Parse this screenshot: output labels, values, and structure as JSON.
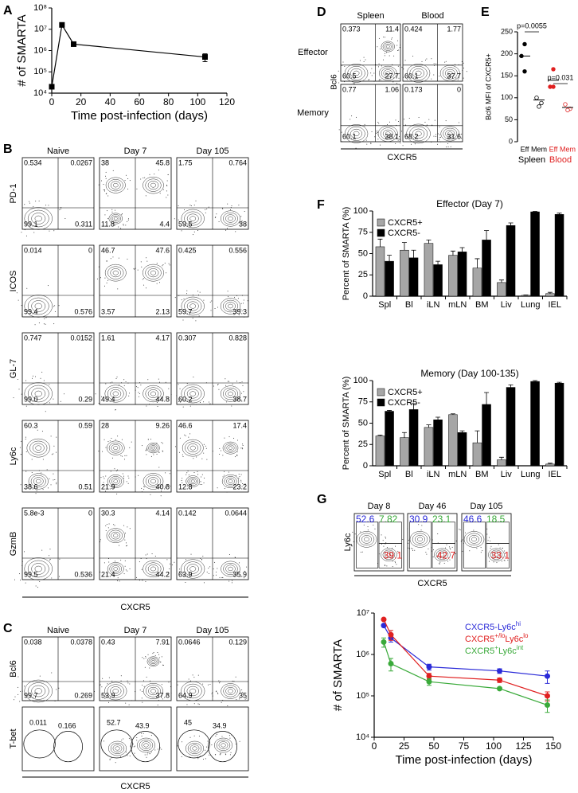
{
  "panel_labels": [
    "A",
    "B",
    "C",
    "D",
    "E",
    "F",
    "G"
  ],
  "flow": {
    "B": {
      "columns": [
        "Naive",
        "Day 7",
        "Day 105"
      ],
      "x_label": "CXCR5",
      "rows": [
        {
          "label": "PD-1",
          "quadrants": [
            [
              "0.534",
              "0.0267",
              "99.1",
              "0.311"
            ],
            [
              "38",
              "45.8",
              "11.8",
              "4.4"
            ],
            [
              "1.75",
              "0.764",
              "59.5",
              "38"
            ]
          ]
        },
        {
          "label": "ICOS",
          "quadrants": [
            [
              "0.014",
              "0",
              "99.4",
              "0.576"
            ],
            [
              "46.7",
              "47.6",
              "3.57",
              "2.13"
            ],
            [
              "0.425",
              "0.556",
              "59.7",
              "39.3"
            ]
          ]
        },
        {
          "label": "GL-7",
          "quadrants": [
            [
              "0.747",
              "0.0152",
              "99.0",
              "0.29"
            ],
            [
              "1.61",
              "4.17",
              "49.4",
              "44.8"
            ],
            [
              "0.307",
              "0.828",
              "60.2",
              "38.7"
            ]
          ]
        },
        {
          "label": "Ly6c",
          "quadrants": [
            [
              "60.3",
              "0.59",
              "38.6",
              "0.51"
            ],
            [
              "28",
              "9.26",
              "21.9",
              "40.8"
            ],
            [
              "46.6",
              "17.4",
              "12.8",
              "23.2"
            ]
          ]
        },
        {
          "label": "GzmB",
          "quadrants": [
            [
              "5.8e-3",
              "0",
              "99.5",
              "0.536"
            ],
            [
              "30.3",
              "4.14",
              "21.4",
              "44.2"
            ],
            [
              "0.142",
              "0.0644",
              "63.9",
              "35.9"
            ]
          ]
        }
      ]
    },
    "C": {
      "columns": [
        "Naive",
        "Day 7",
        "Day 105"
      ],
      "x_label": "CXCR5",
      "rows": [
        {
          "label": "Bcl6",
          "quadrants": [
            [
              "0.038",
              "0.0378",
              "99.7",
              "0.269"
            ],
            [
              "0.43",
              "7.91",
              "53.9",
              "37.8"
            ],
            [
              "0.0646",
              "0.129",
              "64.9",
              "35"
            ]
          ]
        },
        {
          "label": "T-bet",
          "gates": [
            [
              "0.011",
              "0.166"
            ],
            [
              "52.7",
              "43.9"
            ],
            [
              "45",
              "34.9"
            ]
          ]
        }
      ]
    },
    "D": {
      "columns": [
        "Spleen",
        "Blood"
      ],
      "y_label": "Bcl6",
      "x_label": "CXCR5",
      "rows": [
        {
          "label": "Effector",
          "quadrants": [
            [
              "0.373",
              "11.4",
              "60.5",
              "27.7"
            ],
            [
              "0.424",
              "1.77",
              "60.1",
              "37.7"
            ]
          ]
        },
        {
          "label": "Memory",
          "quadrants": [
            [
              "0.77",
              "1.06",
              "60.1",
              "38.1"
            ],
            [
              "0.173",
              "0",
              "68.2",
              "31.6"
            ]
          ]
        }
      ]
    },
    "G": {
      "columns": [
        "Day 8",
        "Day 46",
        "Day 105"
      ],
      "y_label": "Ly6c",
      "x_label": "CXCR5",
      "gate_colors": [
        "#2a2ad8",
        "#3aaa3a",
        "#e02020"
      ],
      "gates": [
        [
          "52.6",
          "7.82",
          "39.1"
        ],
        [
          "30.9",
          "23.1",
          "42.7"
        ],
        [
          "46.6",
          "18.5",
          "33.1"
        ]
      ]
    }
  },
  "chart_data": [
    {
      "type": "line",
      "y_label": "# of SMARTA",
      "x_label": "Time post-infection (days)",
      "log_y": true,
      "marker": "square",
      "x": [
        0,
        7,
        15,
        105
      ],
      "series": [
        {
          "color": "#000000",
          "values": [
            20000,
            16000000,
            2000000,
            500000
          ],
          "errors": [
            null,
            null,
            null,
            200000
          ]
        }
      ],
      "xlim": [
        0,
        120
      ],
      "xticks": [
        0,
        20,
        40,
        60,
        80,
        100,
        120
      ],
      "ylim": [
        10000,
        100000000
      ],
      "yticks": [
        {
          "value": 10000,
          "label": "10⁴"
        },
        {
          "value": 100000,
          "label": "10⁵"
        },
        {
          "value": 1000000,
          "label": "10⁶"
        },
        {
          "value": 10000000,
          "label": "10⁷"
        },
        {
          "value": 100000000,
          "label": "10⁸"
        }
      ]
    },
    {
      "type": "dot",
      "y_label": "Bcl6 MFI of CXCR5+",
      "categories": [
        "Eff",
        "Mem",
        "Eff",
        "Mem"
      ],
      "category_group": [
        0,
        0,
        1,
        1
      ],
      "filled": [
        true,
        false,
        true,
        false
      ],
      "groups": [
        {
          "name": "Spleen",
          "color": "#000000"
        },
        {
          "name": "Blood",
          "color": "#e02020"
        }
      ],
      "points": [
        [
          222,
          195,
          160
        ],
        [
          100,
          88,
          80
        ],
        [
          165,
          125,
          125
        ],
        [
          85,
          75,
          72
        ]
      ],
      "means": [
        195,
        95,
        140,
        78
      ],
      "annotations": [
        "p=0.0055",
        "p=0.031"
      ],
      "ylim": [
        0,
        250
      ],
      "yticks": [
        0,
        50,
        100,
        150,
        200,
        250
      ]
    },
    {
      "type": "grouped_bar",
      "title": "Effector (Day 7)",
      "y_label": "Percent of SMARTA (%)",
      "categories": [
        "Spl",
        "Bl",
        "iLN",
        "mLN",
        "BM",
        "Liv",
        "Lung",
        "IEL"
      ],
      "series": [
        {
          "name": "CXCR5+",
          "color": "#a6a6a6",
          "values": [
            58,
            54,
            62,
            48,
            33,
            16,
            1,
            3
          ],
          "errors": [
            9,
            9,
            4,
            5,
            11,
            3,
            0.5,
            1.5
          ]
        },
        {
          "name": "CXCR5-",
          "color": "#000000",
          "values": [
            41,
            45,
            37,
            52,
            66,
            83,
            99,
            96
          ],
          "errors": [
            7,
            9,
            4,
            5,
            11,
            3,
            0.5,
            1.5
          ]
        }
      ],
      "ylim": [
        0,
        100
      ],
      "yticks": [
        0,
        25,
        50,
        75,
        100
      ]
    },
    {
      "type": "grouped_bar",
      "title": "Memory (Day 100-135)",
      "y_label": "Percent of SMARTA (%)",
      "categories": [
        "Spl",
        "Bl",
        "iLN",
        "mLN",
        "BM",
        "Liv",
        "Lung",
        "IEL"
      ],
      "series": [
        {
          "name": "CXCR5+",
          "color": "#a6a6a6",
          "values": [
            35,
            33,
            45,
            60,
            27,
            7,
            0,
            2
          ],
          "errors": [
            1,
            6,
            3,
            1,
            14,
            3,
            0,
            1
          ]
        },
        {
          "name": "CXCR5-",
          "color": "#000000",
          "values": [
            64,
            66,
            54,
            39,
            72,
            92,
            99,
            97
          ],
          "errors": [
            1,
            7,
            3,
            2,
            14,
            3,
            1,
            1
          ]
        }
      ],
      "ylim": [
        0,
        100
      ],
      "yticks": [
        0,
        25,
        50,
        75,
        100
      ]
    },
    {
      "type": "line",
      "y_label": "# of  SMARTA",
      "x_label": "Time post-infection (days)",
      "log_y": true,
      "marker": "circle",
      "x": [
        8,
        14,
        46,
        105,
        145
      ],
      "series": [
        {
          "name": [
            {
              "text": "CXCR5-Ly6c"
            },
            {
              "text": "hi",
              "sup": true
            }
          ],
          "color": "#2a2ad8",
          "values": [
            5000000,
            2500000,
            500000,
            400000,
            300000
          ],
          "errors": [
            null,
            500000,
            80000,
            50000,
            100000
          ]
        },
        {
          "name": [
            {
              "text": "CXCR5"
            },
            {
              "text": "+/lo",
              "sup": true
            },
            {
              "text": "Ly6c"
            },
            {
              "text": "lo",
              "sup": true
            }
          ],
          "color": "#e02020",
          "values": [
            7000000,
            3000000,
            300000,
            240000,
            100000
          ],
          "errors": [
            null,
            800000,
            50000,
            30000,
            25000
          ]
        },
        {
          "name": [
            {
              "text": "CXCR5"
            },
            {
              "text": "+",
              "sup": true
            },
            {
              "text": "Ly6c"
            },
            {
              "text": "int",
              "sup": true
            }
          ],
          "color": "#3aaa3a",
          "values": [
            2000000,
            600000,
            220000,
            150000,
            60000
          ],
          "errors": [
            500000,
            200000,
            40000,
            null,
            20000
          ]
        }
      ],
      "xlim": [
        0,
        150
      ],
      "xticks": [
        0,
        25,
        50,
        75,
        100,
        125,
        150
      ],
      "ylim": [
        10000,
        10000000
      ],
      "yticks": [
        {
          "value": 10000,
          "label": "10⁴"
        },
        {
          "value": 100000,
          "label": "10⁵"
        },
        {
          "value": 1000000,
          "label": "10⁶"
        },
        {
          "value": 10000000,
          "label": "10⁷"
        }
      ]
    }
  ]
}
